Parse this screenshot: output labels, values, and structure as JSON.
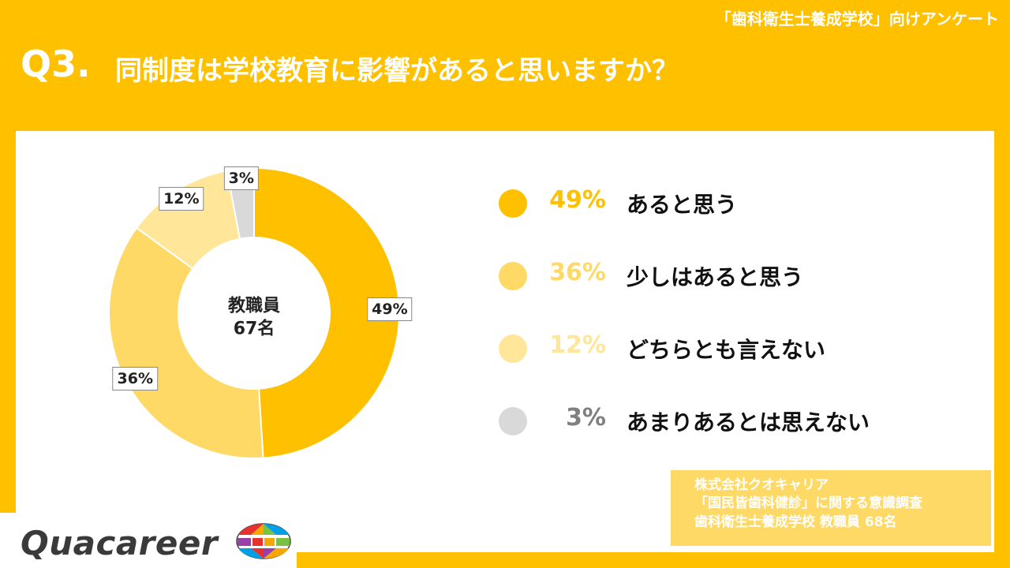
{
  "survey_tag": "「歯科衛生士養成学校」向けアンケート",
  "question": {
    "number": "Q3.",
    "text": "同制度は学校教育に影響があると思いますか？"
  },
  "chart_data": {
    "type": "pie",
    "donut": true,
    "title": "",
    "center_label": [
      "教職員",
      "67名"
    ],
    "slices": [
      {
        "label": "あると思う",
        "value": 49,
        "display": "49%",
        "color": "#FFC000"
      },
      {
        "label": "少しはあると思う",
        "value": 36,
        "display": "36%",
        "color": "#FFD966"
      },
      {
        "label": "どちらとも言えない",
        "value": 12,
        "display": "12%",
        "color": "#FFE699"
      },
      {
        "label": "あまりあるとは思えない",
        "value": 3,
        "display": "3%",
        "color": "#D9D9D9"
      }
    ],
    "legend_placement": "right",
    "legend_pct_colors": [
      "#FFC000",
      "#FFD966",
      "#FFE699",
      "#7F7F7F"
    ]
  },
  "source": {
    "lines": [
      "株式会社クオキャリア",
      "「国民皆歯科健診」に関する意識調査",
      "歯科衛生士養成学校 教職員 68名"
    ]
  },
  "logo": {
    "text": "Quacareer",
    "icon": "globe-logo-icon"
  }
}
